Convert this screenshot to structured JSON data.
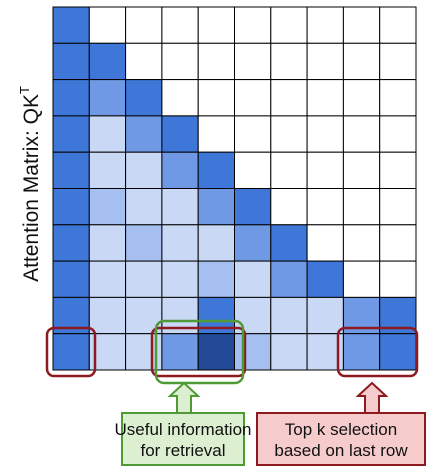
{
  "y_axis_label": "Attention Matrix: QK",
  "y_axis_label_sup": "T",
  "matrix": {
    "size": 10,
    "levels": [
      "#ffffff",
      "#c9d8f5",
      "#a4bff0",
      "#7099e5",
      "#3f77d8",
      "#224a97"
    ],
    "rows": [
      [
        4,
        0,
        0,
        0,
        0,
        0,
        0,
        0,
        0,
        0
      ],
      [
        4,
        4,
        0,
        0,
        0,
        0,
        0,
        0,
        0,
        0
      ],
      [
        4,
        3,
        4,
        0,
        0,
        0,
        0,
        0,
        0,
        0
      ],
      [
        4,
        1,
        3,
        4,
        0,
        0,
        0,
        0,
        0,
        0
      ],
      [
        4,
        1,
        1,
        3,
        4,
        0,
        0,
        0,
        0,
        0
      ],
      [
        4,
        2,
        1,
        1,
        3,
        4,
        0,
        0,
        0,
        0
      ],
      [
        4,
        1,
        2,
        1,
        1,
        3,
        4,
        0,
        0,
        0
      ],
      [
        4,
        1,
        1,
        1,
        2,
        1,
        3,
        4,
        0,
        0
      ],
      [
        4,
        1,
        1,
        1,
        4,
        1,
        1,
        1,
        3,
        4
      ],
      [
        4,
        1,
        1,
        3,
        5,
        2,
        1,
        1,
        3,
        4
      ]
    ]
  },
  "callouts": [
    {
      "line1": "Useful information",
      "line2": "for retrieval",
      "fill": "#dcefd0",
      "stroke": "#4f9a34"
    },
    {
      "line1": "Top k selection",
      "line2": "based on last row",
      "fill": "#f6cbcc",
      "stroke": "#8c1a20"
    }
  ]
}
